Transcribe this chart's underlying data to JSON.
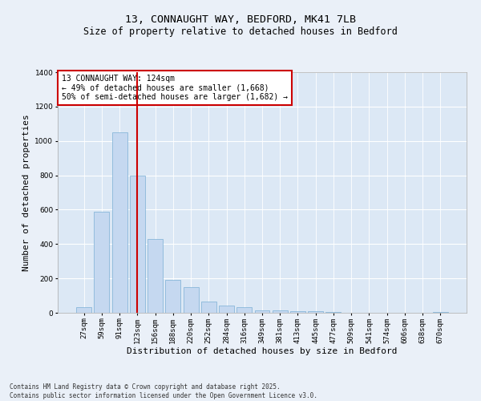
{
  "title_line1": "13, CONNAUGHT WAY, BEDFORD, MK41 7LB",
  "title_line2": "Size of property relative to detached houses in Bedford",
  "xlabel": "Distribution of detached houses by size in Bedford",
  "ylabel": "Number of detached properties",
  "categories": [
    "27sqm",
    "59sqm",
    "91sqm",
    "123sqm",
    "156sqm",
    "188sqm",
    "220sqm",
    "252sqm",
    "284sqm",
    "316sqm",
    "349sqm",
    "381sqm",
    "413sqm",
    "445sqm",
    "477sqm",
    "509sqm",
    "541sqm",
    "574sqm",
    "606sqm",
    "638sqm",
    "670sqm"
  ],
  "values": [
    35,
    590,
    1050,
    800,
    430,
    190,
    150,
    65,
    40,
    35,
    15,
    15,
    10,
    8,
    4,
    0,
    0,
    0,
    0,
    0,
    5
  ],
  "bar_color": "#c5d8f0",
  "bar_edge_color": "#7bafd4",
  "highlight_bar_index": 3,
  "highlight_line_color": "#cc0000",
  "annotation_text": "13 CONNAUGHT WAY: 124sqm\n← 49% of detached houses are smaller (1,668)\n50% of semi-detached houses are larger (1,682) →",
  "ylim": [
    0,
    1400
  ],
  "yticks": [
    0,
    200,
    400,
    600,
    800,
    1000,
    1200,
    1400
  ],
  "footnote": "Contains HM Land Registry data © Crown copyright and database right 2025.\nContains public sector information licensed under the Open Government Licence v3.0.",
  "bg_color": "#eaf0f8",
  "plot_bg_color": "#dce8f5",
  "grid_color": "#ffffff",
  "title_fontsize": 9.5,
  "subtitle_fontsize": 8.5,
  "tick_fontsize": 6.5,
  "label_fontsize": 8,
  "annot_fontsize": 7,
  "footnote_fontsize": 5.5
}
